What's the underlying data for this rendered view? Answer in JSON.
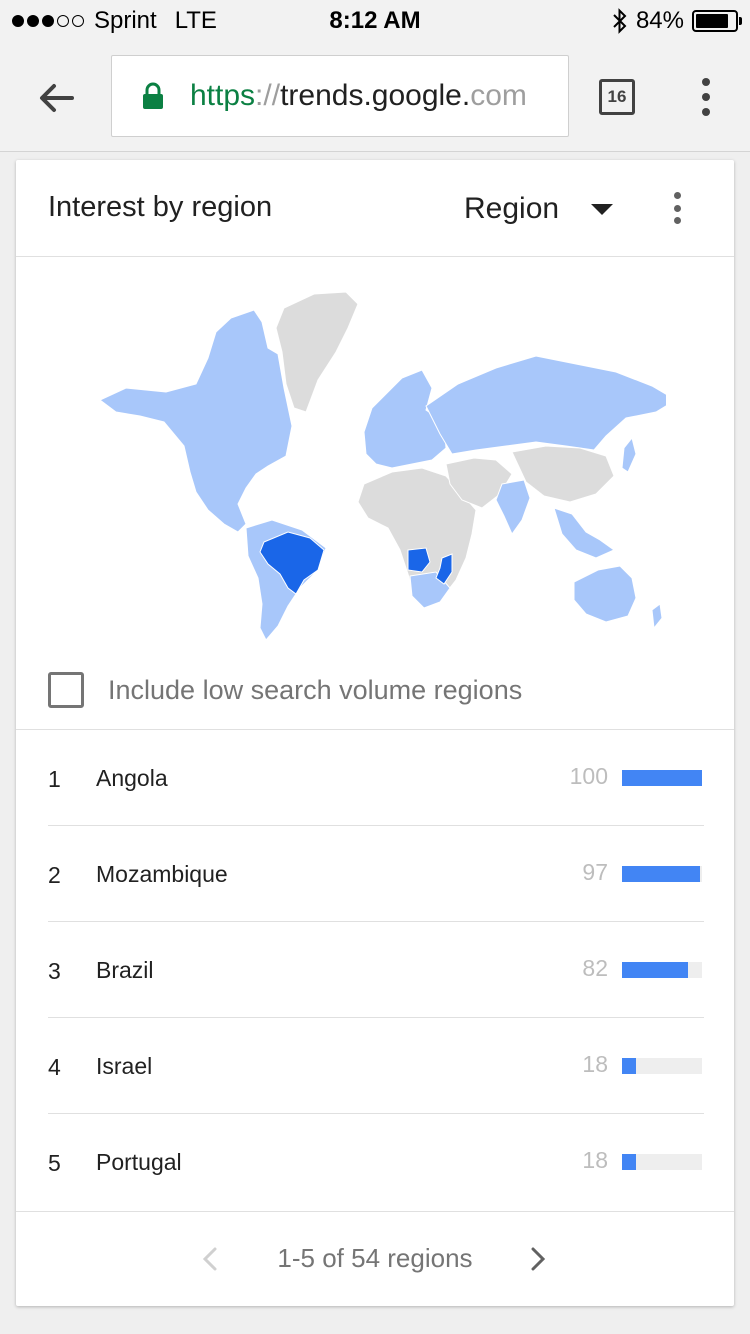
{
  "status_bar": {
    "carrier": "Sprint",
    "network": "LTE",
    "time": "8:12 AM",
    "battery": "84%",
    "battery_level": 0.84,
    "signal_bars": 3
  },
  "browser": {
    "url_scheme": "https",
    "url_sep": "://",
    "url_host": "trends.google.",
    "url_fade": "com",
    "tab_count": "16"
  },
  "card": {
    "title": "Interest by region",
    "region_dropdown": "Region",
    "low_volume_label": "Include low search volume regions",
    "low_volume_checked": false
  },
  "map": {
    "colors": {
      "no_data": "#dcdcdc",
      "low": "#a8c7fa",
      "high": "#1a66e8"
    },
    "highlighted": [
      "Brazil",
      "Angola",
      "Mozambique"
    ]
  },
  "regions": [
    {
      "rank": "1",
      "name": "Angola",
      "value": "100",
      "fraction": 1.0
    },
    {
      "rank": "2",
      "name": "Mozambique",
      "value": "97",
      "fraction": 0.97
    },
    {
      "rank": "3",
      "name": "Brazil",
      "value": "82",
      "fraction": 0.82
    },
    {
      "rank": "4",
      "name": "Israel",
      "value": "18",
      "fraction": 0.18
    },
    {
      "rank": "5",
      "name": "Portugal",
      "value": "18",
      "fraction": 0.18
    }
  ],
  "pagination": {
    "label": "1-5 of 54 regions"
  },
  "accent_color": "#4285f4"
}
